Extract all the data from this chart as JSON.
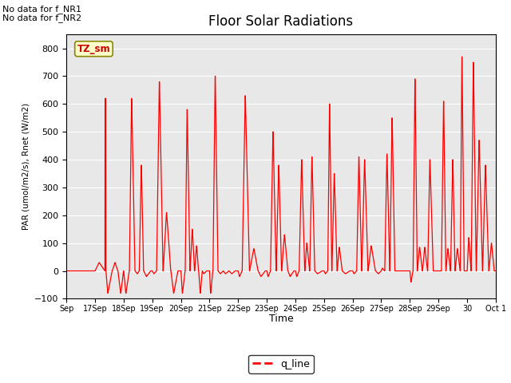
{
  "title": "Floor Solar Radiations",
  "xlabel": "Time",
  "ylabel": "PAR (umol/m2/s), Rnet (W/m2)",
  "ylim": [
    -100,
    850
  ],
  "yticks": [
    -100,
    0,
    100,
    200,
    300,
    400,
    500,
    600,
    700,
    800
  ],
  "line_color": "#ff0000",
  "line_label": "q_line",
  "bg_color": "#e8e8e8",
  "annotation1": "No data for f_NR1",
  "annotation2": "No data for f_NR2",
  "tz_label": "TZ_sm",
  "figsize": [
    6.4,
    4.8
  ],
  "dpi": 100
}
